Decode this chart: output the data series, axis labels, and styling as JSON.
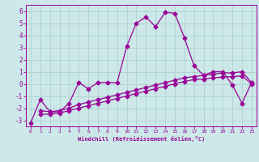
{
  "line1_x": [
    0,
    1,
    2,
    3,
    4,
    5,
    6,
    7,
    8,
    9,
    10,
    11,
    12,
    13,
    14,
    15,
    16,
    17,
    18,
    19,
    20,
    21,
    22,
    23
  ],
  "line1_y": [
    -3.2,
    -1.3,
    -2.3,
    -2.3,
    -1.6,
    0.1,
    -0.4,
    0.1,
    0.1,
    0.1,
    3.1,
    5.0,
    5.5,
    4.7,
    5.9,
    5.8,
    3.8,
    1.5,
    0.7,
    1.0,
    1.0,
    -0.1,
    -1.6,
    0.1
  ],
  "line2_x": [
    1,
    2,
    3,
    4,
    5,
    6,
    7,
    8,
    9,
    10,
    11,
    12,
    13,
    14,
    15,
    16,
    17,
    18,
    19,
    20,
    21,
    22,
    23
  ],
  "line2_y": [
    -2.2,
    -2.3,
    -2.2,
    -2.0,
    -1.7,
    -1.5,
    -1.3,
    -1.1,
    -0.9,
    -0.7,
    -0.5,
    -0.3,
    -0.1,
    0.1,
    0.3,
    0.5,
    0.6,
    0.7,
    0.8,
    0.9,
    0.9,
    1.0,
    0.1
  ],
  "line3_x": [
    1,
    2,
    3,
    4,
    5,
    6,
    7,
    8,
    9,
    10,
    11,
    12,
    13,
    14,
    15,
    16,
    17,
    18,
    19,
    20,
    21,
    22,
    23
  ],
  "line3_y": [
    -2.5,
    -2.5,
    -2.4,
    -2.2,
    -2.0,
    -1.8,
    -1.6,
    -1.4,
    -1.2,
    -1.0,
    -0.8,
    -0.6,
    -0.4,
    -0.2,
    0.0,
    0.2,
    0.35,
    0.4,
    0.5,
    0.55,
    0.6,
    0.65,
    0.0
  ],
  "color": "#990099",
  "bg_color": "#cce8e8",
  "grid_color": "#aacccc",
  "xlabel": "Windchill (Refroidissement éolien,°C)",
  "xlim": [
    -0.5,
    23.5
  ],
  "ylim": [
    -3.5,
    6.5
  ],
  "yticks": [
    -3,
    -2,
    -1,
    0,
    1,
    2,
    3,
    4,
    5,
    6
  ],
  "xticks": [
    0,
    1,
    2,
    3,
    4,
    5,
    6,
    7,
    8,
    9,
    10,
    11,
    12,
    13,
    14,
    15,
    16,
    17,
    18,
    19,
    20,
    21,
    22,
    23
  ],
  "marker": "D",
  "markersize": 2.5,
  "linewidth": 0.9
}
